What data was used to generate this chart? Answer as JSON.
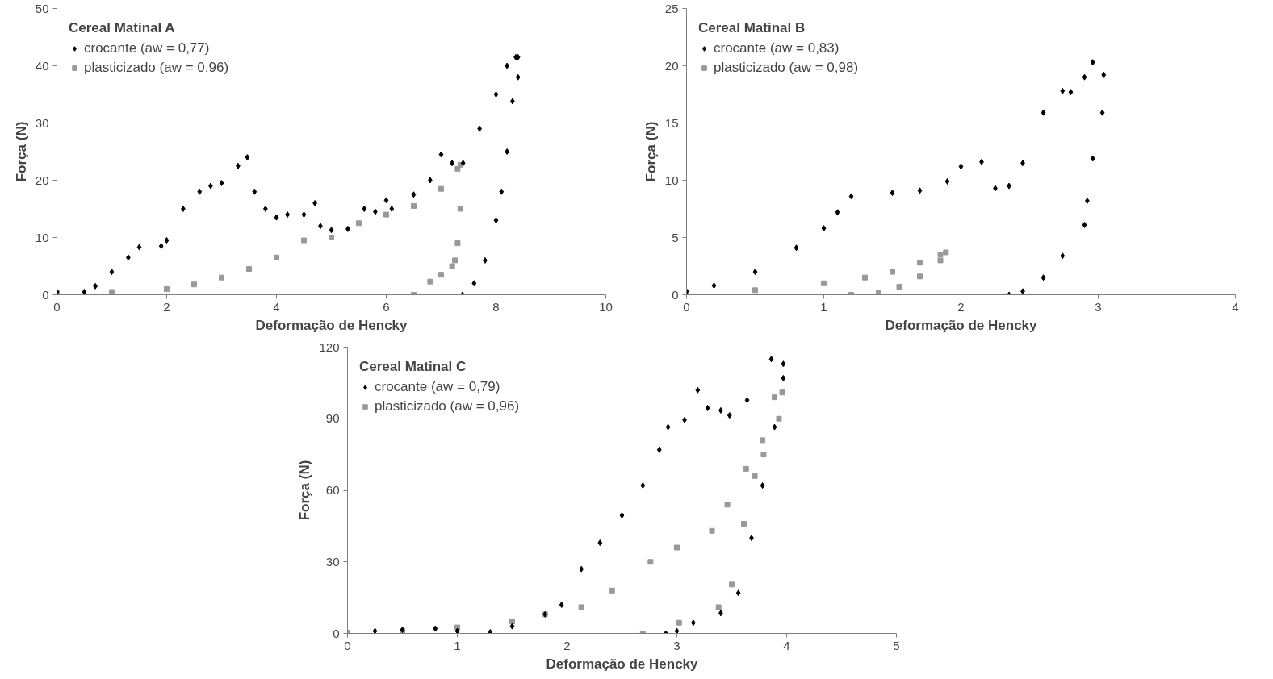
{
  "chart_data": [
    {
      "type": "scatter",
      "legend_title": "Cereal Matinal A",
      "xlabel": "Deformação de Hencky",
      "ylabel": "Força (N)",
      "xlim": [
        0,
        10
      ],
      "xticks": [
        0,
        2,
        4,
        6,
        8,
        10
      ],
      "ylim": [
        0,
        50
      ],
      "yticks": [
        0,
        10,
        20,
        30,
        40,
        50
      ],
      "grid": false,
      "legend": "top left",
      "series": [
        {
          "name": "crocante (aw = 0,77)",
          "color": "#000000",
          "marker": "diamond",
          "x": [
            0,
            0.5,
            0.7,
            1,
            1.3,
            1.5,
            1.9,
            2.0,
            2.3,
            2.6,
            2.8,
            3.0,
            3.3,
            3.47,
            3.6,
            3.8,
            4.0,
            4.2,
            4.5,
            4.7,
            4.8,
            5.0,
            5.3,
            5.6,
            5.8,
            6.0,
            6.1,
            6.5,
            6.8,
            7.0,
            7.2,
            7.4,
            7.7,
            8.0,
            8.2,
            8.36,
            8.4,
            8.4,
            8.3,
            8.2,
            8.1,
            8.0,
            7.8,
            7.6,
            7.39
          ],
          "values": [
            0.5,
            0.5,
            1.5,
            4,
            6.5,
            8.3,
            8.5,
            9.5,
            15,
            18,
            19,
            19.5,
            22.5,
            24,
            18,
            15,
            13.5,
            14,
            14,
            16,
            12,
            11.3,
            11.5,
            15,
            14.5,
            16.5,
            15,
            17.5,
            20,
            24.5,
            23,
            23,
            29,
            35,
            40,
            41.5,
            41.5,
            38,
            33.8,
            25,
            18,
            13,
            6,
            2,
            0
          ]
        },
        {
          "name": "plasticizado (aw = 0,96)",
          "color": "#999999",
          "marker": "square",
          "x": [
            0,
            1,
            2,
            2.5,
            3,
            3.5,
            4,
            4.5,
            5,
            5.5,
            6,
            6.5,
            7,
            7.3,
            7.35,
            7.35,
            7.3,
            7.25,
            7.2,
            7.0,
            6.8,
            6.5
          ],
          "values": [
            0.3,
            0.5,
            1,
            1.8,
            3,
            4.5,
            6.5,
            9.5,
            10,
            12.5,
            14,
            15.5,
            18.5,
            22,
            22.7,
            15,
            9,
            6,
            5,
            3.5,
            2.3,
            0
          ]
        }
      ]
    },
    {
      "type": "scatter",
      "legend_title": "Cereal Matinal B",
      "xlabel": "Deformação de Hencky",
      "ylabel": "Força (N)",
      "xlim": [
        0,
        4
      ],
      "xticks": [
        0,
        1,
        2,
        3,
        4
      ],
      "ylim": [
        0,
        25
      ],
      "yticks": [
        0,
        5,
        10,
        15,
        20,
        25
      ],
      "grid": false,
      "legend": "top left",
      "series": [
        {
          "name": "crocante (aw = 0,83)",
          "color": "#000000",
          "marker": "diamond",
          "x": [
            0,
            0.2,
            0.5,
            0.8,
            1.0,
            1.1,
            1.2,
            1.5,
            1.7,
            1.9,
            2.0,
            2.15,
            2.25,
            2.35,
            2.45,
            2.6,
            2.74,
            2.8,
            2.9,
            2.96,
            3.04,
            3.03,
            2.96,
            2.92,
            2.9,
            2.74,
            2.6,
            2.45,
            2.35
          ],
          "values": [
            0.3,
            0.8,
            2.0,
            4.1,
            5.8,
            7.2,
            8.6,
            8.9,
            9.1,
            9.9,
            11.2,
            11.6,
            9.3,
            9.5,
            11.5,
            15.9,
            17.8,
            17.7,
            19,
            20.3,
            19.2,
            15.9,
            11.9,
            8.2,
            6.1,
            3.4,
            1.5,
            0.3,
            0
          ]
        },
        {
          "name": "plasticizado (aw = 0,98)",
          "color": "#999999",
          "marker": "square",
          "x": [
            0,
            0.5,
            1,
            1.3,
            1.5,
            1.7,
            1.85,
            1.89,
            1.85,
            1.7,
            1.55,
            1.4,
            1.2
          ],
          "values": [
            0.2,
            0.4,
            1,
            1.5,
            2,
            2.8,
            3.5,
            3.7,
            3.0,
            1.6,
            0.7,
            0.2,
            0
          ]
        }
      ]
    },
    {
      "type": "scatter",
      "legend_title": "Cereal Matinal C",
      "xlabel": "Deformação de Hencky",
      "ylabel": "Força (N)",
      "xlim": [
        0,
        5
      ],
      "xticks": [
        0,
        1,
        2,
        3,
        4,
        5
      ],
      "ylim": [
        0,
        120
      ],
      "yticks": [
        0,
        30,
        60,
        90,
        120
      ],
      "grid": false,
      "legend": "top left",
      "series": [
        {
          "name": "crocante (aw = 0,79)",
          "color": "#000000",
          "marker": "diamond",
          "x": [
            0.25,
            0.5,
            0.8,
            1.0,
            1.3,
            1.5,
            1.8,
            1.95,
            2.13,
            2.3,
            2.5,
            2.69,
            2.84,
            2.92,
            3.07,
            3.19,
            3.28,
            3.4,
            3.48,
            3.64,
            3.86,
            3.97,
            3.97,
            3.89,
            3.78,
            3.68,
            3.56,
            3.4,
            3.15,
            3.0,
            2.9
          ],
          "values": [
            1,
            1.5,
            2,
            1,
            0.5,
            3,
            8,
            12,
            27,
            38,
            49.5,
            62,
            77,
            86.5,
            89.5,
            102,
            94.5,
            93.5,
            91.4,
            97.8,
            115,
            113,
            107,
            86.5,
            62,
            40,
            17,
            8.5,
            4.5,
            1,
            0
          ]
        },
        {
          "name": "plasticizado (aw = 0,96)",
          "color": "#999999",
          "marker": "square",
          "x": [
            0,
            0.5,
            1,
            1.5,
            1.8,
            2.13,
            2.41,
            2.76,
            3.0,
            3.32,
            3.46,
            3.63,
            3.78,
            3.89,
            3.96,
            3.93,
            3.79,
            3.71,
            3.61,
            3.5,
            3.38,
            3.02,
            2.69
          ],
          "values": [
            0.3,
            1,
            2.5,
            5,
            8,
            11,
            18,
            30,
            36,
            43,
            54,
            69,
            81,
            99,
            101,
            90,
            75,
            66,
            46,
            20.5,
            11,
            4.5,
            0
          ]
        }
      ]
    }
  ]
}
